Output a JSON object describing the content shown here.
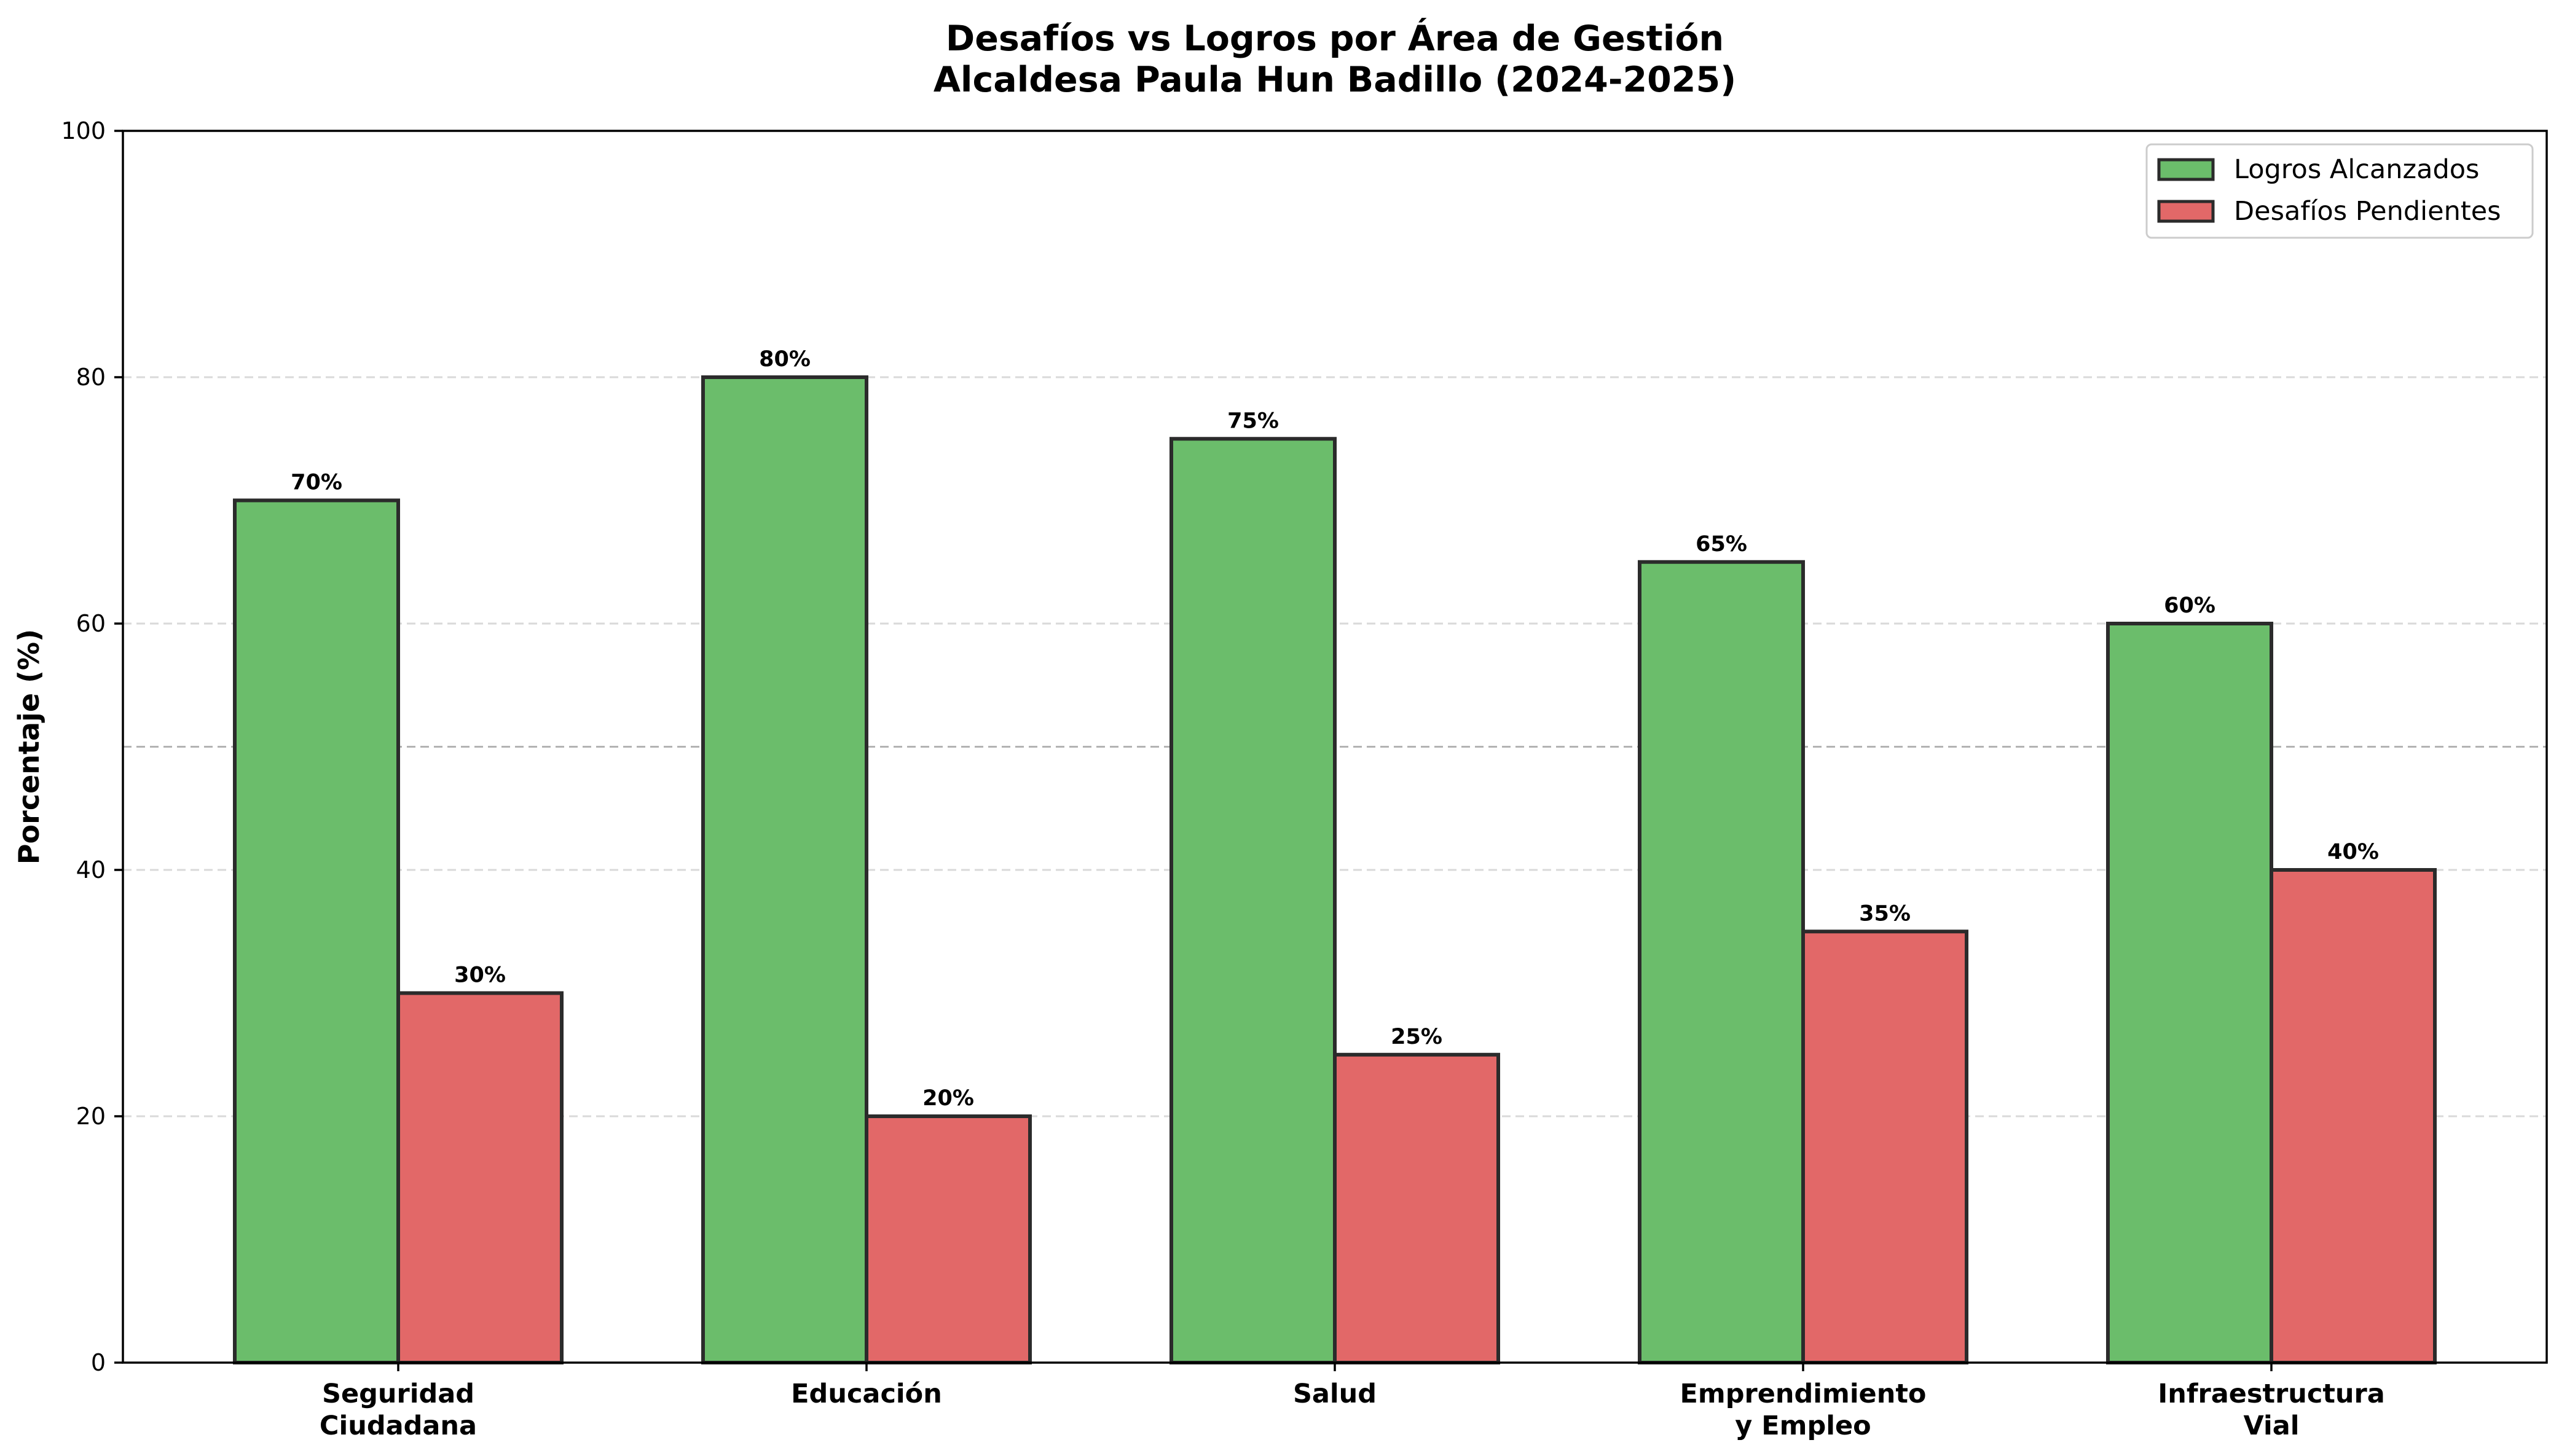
{
  "chart_data": {
    "type": "bar",
    "title": [
      "Desafíos vs Logros por Área de Gestión",
      "Alcaldesa Paula Hun Badillo (2024-2025)"
    ],
    "xlabel": "",
    "ylabel": "Porcentaje (%)",
    "ylim": [
      0,
      100
    ],
    "yticks": [
      0,
      20,
      40,
      60,
      80,
      100
    ],
    "categories": [
      [
        "Seguridad",
        "Ciudadana"
      ],
      [
        "Educación"
      ],
      [
        "Salud"
      ],
      [
        "Emprendimiento",
        "y Empleo"
      ],
      [
        "Infraestructura",
        "Vial"
      ]
    ],
    "series": [
      {
        "name": "Logros Alcanzados",
        "color": "#6bbd6b",
        "values": [
          70,
          80,
          75,
          65,
          60
        ],
        "labels": [
          "70%",
          "80%",
          "75%",
          "65%",
          "60%"
        ]
      },
      {
        "name": "Desafíos Pendientes",
        "color": "#e26868",
        "values": [
          30,
          20,
          25,
          35,
          40
        ],
        "labels": [
          "30%",
          "20%",
          "25%",
          "35%",
          "40%"
        ]
      }
    ],
    "reference_line": 50,
    "grid": true,
    "legend_position": "top-right",
    "edge_color": "#2b2b2b"
  }
}
